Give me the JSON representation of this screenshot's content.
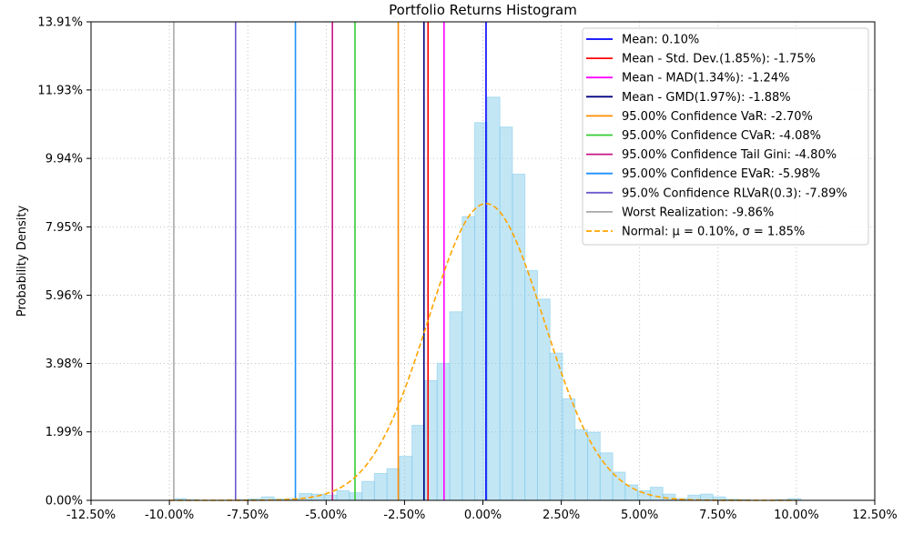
{
  "chart_data": {
    "type": "bar",
    "title": "Portfolio Returns Histogram",
    "xlabel": "",
    "ylabel": "Probability Density",
    "xlim": [
      -0.125,
      0.125
    ],
    "ylim": [
      0,
      0.1391
    ],
    "grid": true,
    "legend_position": "top-right",
    "x_ticks": [
      -0.125,
      -0.1,
      -0.075,
      -0.05,
      -0.025,
      0.0,
      0.025,
      0.05,
      0.075,
      0.1,
      0.125
    ],
    "x_tick_labels": [
      "-12.50%",
      "-10.00%",
      "-7.50%",
      "-5.00%",
      "-2.50%",
      "0.00%",
      "2.50%",
      "5.00%",
      "7.50%",
      "10.00%",
      "12.50%"
    ],
    "y_ticks": [
      0.0,
      0.0199,
      0.0398,
      0.0596,
      0.0795,
      0.0994,
      0.1193,
      0.1391
    ],
    "y_tick_labels": [
      "0.00%",
      "1.99%",
      "3.98%",
      "5.96%",
      "7.95%",
      "9.94%",
      "11.93%",
      "13.91%"
    ],
    "histogram": {
      "bin_width": 0.004,
      "fill_color": "#87ceeb",
      "edge_color": "#87ceeb",
      "bins": [
        {
          "x0": -0.0986,
          "density": 0.0005
        },
        {
          "x0": -0.0946,
          "density": 0.0002
        },
        {
          "x0": -0.0906,
          "density": 0.0
        },
        {
          "x0": -0.0866,
          "density": 0.0
        },
        {
          "x0": -0.0826,
          "density": 0.0
        },
        {
          "x0": -0.0786,
          "density": 0.0002
        },
        {
          "x0": -0.0746,
          "density": 0.0004
        },
        {
          "x0": -0.0706,
          "density": 0.001
        },
        {
          "x0": -0.0666,
          "density": 0.0004
        },
        {
          "x0": -0.0626,
          "density": 0.0005
        },
        {
          "x0": -0.0586,
          "density": 0.002
        },
        {
          "x0": -0.0546,
          "density": 0.0018
        },
        {
          "x0": -0.0506,
          "density": 0.0015
        },
        {
          "x0": -0.0466,
          "density": 0.0028
        },
        {
          "x0": -0.0426,
          "density": 0.0022
        },
        {
          "x0": -0.0386,
          "density": 0.0055
        },
        {
          "x0": -0.0346,
          "density": 0.0078
        },
        {
          "x0": -0.0306,
          "density": 0.0092
        },
        {
          "x0": -0.0266,
          "density": 0.0128
        },
        {
          "x0": -0.0226,
          "density": 0.0218
        },
        {
          "x0": -0.0186,
          "density": 0.0348
        },
        {
          "x0": -0.0146,
          "density": 0.0398
        },
        {
          "x0": -0.0106,
          "density": 0.0548
        },
        {
          "x0": -0.0066,
          "density": 0.0825
        },
        {
          "x0": -0.0026,
          "density": 0.1098
        },
        {
          "x0": 0.0014,
          "density": 0.1172
        },
        {
          "x0": 0.0054,
          "density": 0.1085
        },
        {
          "x0": 0.0094,
          "density": 0.0948
        },
        {
          "x0": 0.0134,
          "density": 0.0668
        },
        {
          "x0": 0.0174,
          "density": 0.0585
        },
        {
          "x0": 0.0214,
          "density": 0.0428
        },
        {
          "x0": 0.0254,
          "density": 0.0295
        },
        {
          "x0": 0.0294,
          "density": 0.0205
        },
        {
          "x0": 0.0334,
          "density": 0.0198
        },
        {
          "x0": 0.0374,
          "density": 0.0138
        },
        {
          "x0": 0.0414,
          "density": 0.0082
        },
        {
          "x0": 0.0454,
          "density": 0.0045
        },
        {
          "x0": 0.0494,
          "density": 0.0028
        },
        {
          "x0": 0.0534,
          "density": 0.0038
        },
        {
          "x0": 0.0574,
          "density": 0.0018
        },
        {
          "x0": 0.0614,
          "density": 0.0005
        },
        {
          "x0": 0.0654,
          "density": 0.0015
        },
        {
          "x0": 0.0694,
          "density": 0.0018
        },
        {
          "x0": 0.0734,
          "density": 0.001
        },
        {
          "x0": 0.0774,
          "density": 0.0003
        },
        {
          "x0": 0.0814,
          "density": 0.0002
        },
        {
          "x0": 0.0854,
          "density": 0.0
        },
        {
          "x0": 0.0894,
          "density": 0.0
        },
        {
          "x0": 0.0934,
          "density": 0.0002
        },
        {
          "x0": 0.0974,
          "density": 0.0005
        }
      ]
    },
    "normal_curve": {
      "label": "Normal: μ = 0.10%, σ = 1.85%",
      "mu": 0.001,
      "sigma": 0.0185,
      "color": "#ffa500"
    },
    "vertical_lines": [
      {
        "label": "Mean: 0.10%",
        "x": 0.001,
        "color": "#0000ff"
      },
      {
        "label": "Mean - Std. Dev.(1.85%): -1.75%",
        "x": -0.0175,
        "color": "#ff0000"
      },
      {
        "label": "Mean - MAD(1.34%): -1.24%",
        "x": -0.0124,
        "color": "#ff00ff"
      },
      {
        "label": "Mean - GMD(1.97%): -1.88%",
        "x": -0.0188,
        "color": "#000080"
      },
      {
        "label": "95.00% Confidence VaR: -2.70%",
        "x": -0.027,
        "color": "#ff8c00"
      },
      {
        "label": "95.00% Confidence CVaR: -4.08%",
        "x": -0.0408,
        "color": "#32cd32"
      },
      {
        "label": "95.00% Confidence Tail Gini: -4.80%",
        "x": -0.048,
        "color": "#c71585"
      },
      {
        "label": "95.00% Confidence EVaR: -5.98%",
        "x": -0.0598,
        "color": "#1e90ff"
      },
      {
        "label": "95.0% Confidence RLVaR(0.3): -7.89%",
        "x": -0.0789,
        "color": "#6a5acd"
      },
      {
        "label": "Worst Realization: -9.86%",
        "x": -0.0986,
        "color": "#a9a9a9"
      }
    ]
  }
}
